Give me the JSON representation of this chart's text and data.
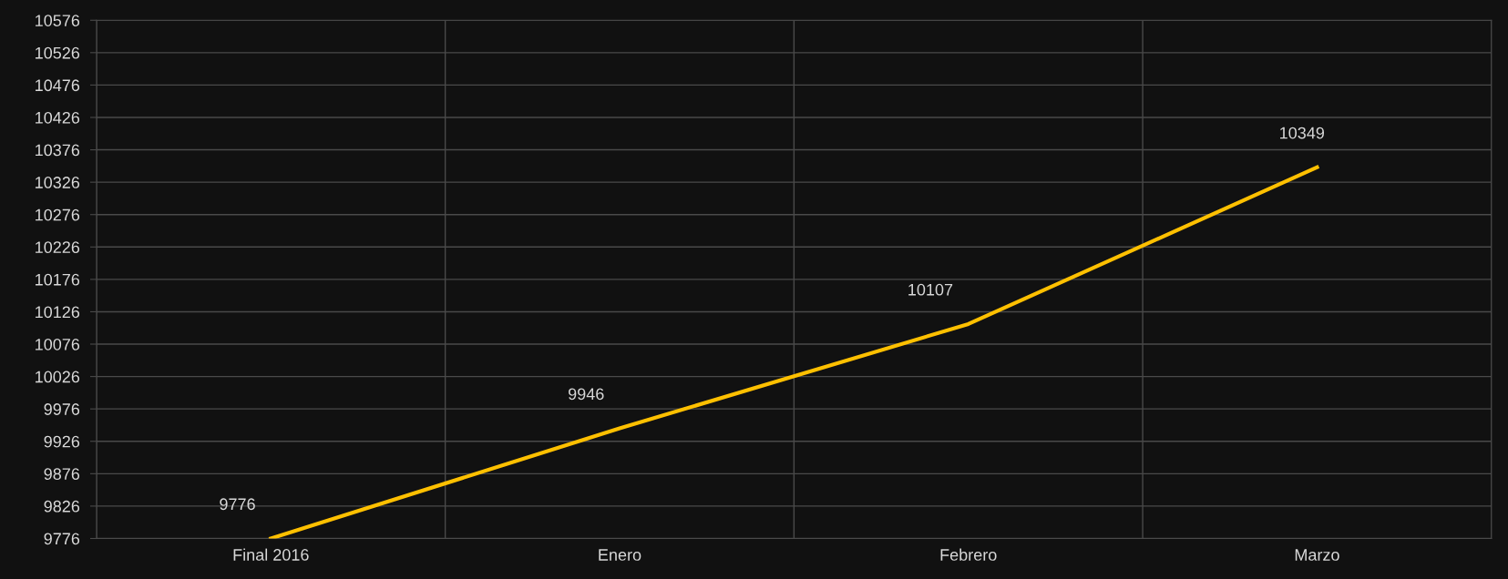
{
  "chart_data": {
    "type": "line",
    "categories": [
      "Final 2016",
      "Enero",
      "Febrero",
      "Marzo"
    ],
    "series": [
      {
        "color": "#ffc000",
        "values": [
          9776,
          9946,
          10107,
          10349
        ]
      }
    ],
    "ylim": [
      9776,
      10576
    ],
    "yticks": [
      9776,
      9826,
      9876,
      9926,
      9976,
      10026,
      10076,
      10126,
      10176,
      10226,
      10276,
      10326,
      10376,
      10426,
      10476,
      10526,
      10576
    ],
    "grid": true,
    "data_labels": true,
    "marker": "none",
    "line_style": "solid"
  }
}
